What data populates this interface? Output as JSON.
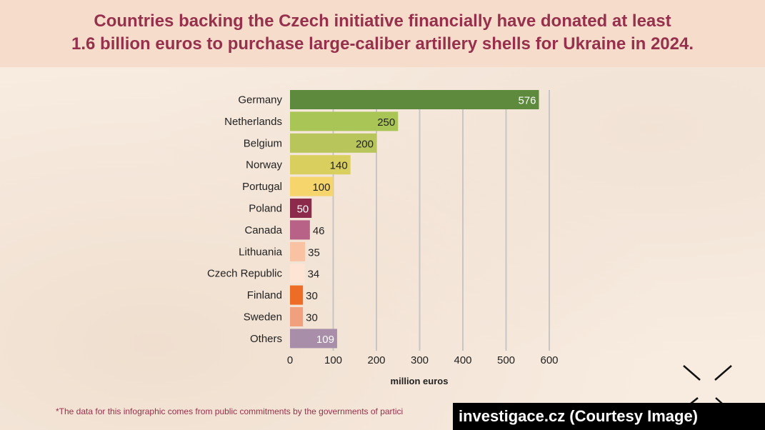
{
  "title_lines": [
    "Countries backing the Czech initiative financially have donated at least",
    "1.6 billion euros to purchase large-caliber artillery shells for Ukraine in 2024."
  ],
  "footnote": "*The data for this infographic comes from public commitments by the governments of partici",
  "credit": "investigace.cz (Courtesy Image)",
  "chart_data": {
    "type": "bar",
    "orientation": "horizontal",
    "title": "",
    "xlabel": "million euros",
    "ylabel": "",
    "xlim": [
      0,
      600
    ],
    "xticks": [
      0,
      100,
      200,
      300,
      400,
      500,
      600
    ],
    "grid": true,
    "categories": [
      "Germany",
      "Netherlands",
      "Belgium",
      "Norway",
      "Portugal",
      "Poland",
      "Canada",
      "Lithuania",
      "Czech Republic",
      "Finland",
      "Sweden",
      "Others"
    ],
    "values": [
      576,
      250,
      200,
      140,
      100,
      50,
      46,
      35,
      34,
      30,
      30,
      109
    ],
    "colors": [
      "#5d8a3c",
      "#a9c556",
      "#b8c55a",
      "#d9cf5f",
      "#f6d66c",
      "#8b2a4b",
      "#b86288",
      "#f8c2a3",
      "#fde4d4",
      "#ed6d27",
      "#f0a07c",
      "#a88ea9"
    ],
    "label_colors": [
      "#ffffff",
      "#222222",
      "#222222",
      "#222222",
      "#222222",
      "#ffffff",
      "#222222",
      "#222222",
      "#222222",
      "#222222",
      "#222222",
      "#ffffff"
    ],
    "label_inside": [
      true,
      true,
      true,
      true,
      true,
      true,
      false,
      false,
      false,
      false,
      false,
      true
    ]
  }
}
